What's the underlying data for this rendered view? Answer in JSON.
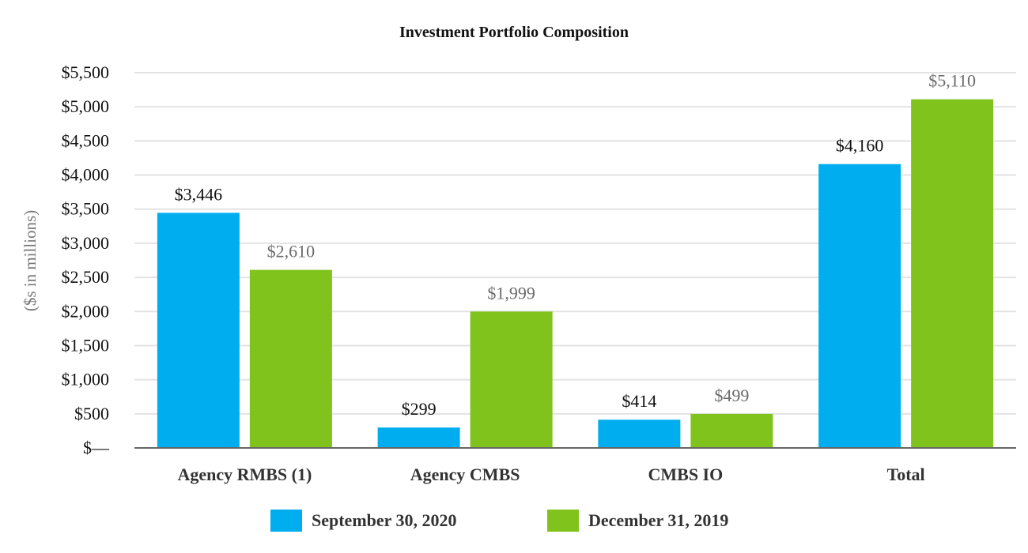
{
  "chart_data": {
    "type": "bar",
    "title": "Investment Portfolio Composition",
    "ylabel": "($s in millions)",
    "xlabel": "",
    "ylim": [
      0,
      5500
    ],
    "yticks": [
      0,
      500,
      1000,
      1500,
      2000,
      2500,
      3000,
      3500,
      4000,
      4500,
      5000,
      5500
    ],
    "ytick_labels": [
      "$—",
      "$500",
      "$1,000",
      "$1,500",
      "$2,000",
      "$2,500",
      "$3,000",
      "$3,500",
      "$4,000",
      "$4,500",
      "$5,000",
      "$5,500"
    ],
    "categories": [
      "Agency RMBS (1)",
      "Agency CMBS",
      "CMBS IO",
      "Total"
    ],
    "series": [
      {
        "name": "September 30, 2020",
        "color": "#00aeef",
        "label_color": "#111111",
        "values": [
          3446,
          299,
          414,
          4160
        ],
        "labels": [
          "$3,446",
          "$299",
          "$414",
          "$4,160"
        ]
      },
      {
        "name": "December 31, 2019",
        "color": "#7fc31c",
        "label_color": "#6b6b6b",
        "values": [
          2610,
          1999,
          499,
          5110
        ],
        "labels": [
          "$2,610",
          "$1,999",
          "$499",
          "$5,110"
        ]
      }
    ],
    "grid": true,
    "legend_position": "bottom"
  }
}
